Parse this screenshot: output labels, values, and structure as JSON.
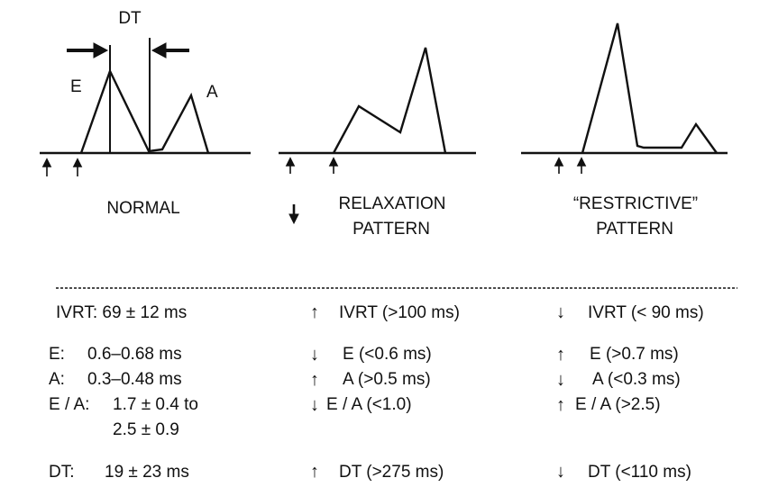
{
  "diagram": {
    "labels": {
      "dt": "DT",
      "e": "E",
      "a": "A"
    },
    "panels": [
      {
        "title_lines": [
          "NORMAL"
        ]
      },
      {
        "title_lines": [
          "RELAXATION",
          "PATTERN"
        ],
        "marker": "↓"
      },
      {
        "title_lines": [
          "“RESTRICTIVE”",
          "PATTERN"
        ]
      }
    ]
  },
  "table": {
    "normal": {
      "ivrt": "IVRT: 69 ± 12 ms",
      "e_label": "E:",
      "e_value": "0.6–0.68 ms",
      "a_label": "A:",
      "a_value": "0.3–0.48 ms",
      "ea_label": "E / A:",
      "ea_value_1": "1.7 ± 0.4 to",
      "ea_value_2": "2.5 ± 0.9",
      "dt_label": "DT:",
      "dt_value": "19 ± 23 ms"
    },
    "relaxation": {
      "ivrt_arrow": "↑",
      "ivrt": "IVRT (>100 ms)",
      "e_arrow": "↓",
      "e": "E (<0.6 ms)",
      "a_arrow": "↑",
      "a": "A (>0.5 ms)",
      "ea_arrow": "↓",
      "ea": "E / A (<1.0)",
      "dt_arrow": "↑",
      "dt": "DT (>275 ms)"
    },
    "restrictive": {
      "ivrt_arrow": "↓",
      "ivrt": "IVRT (< 90 ms)",
      "e_arrow": "↑",
      "e": "E (>0.7 ms)",
      "a_arrow": "↓",
      "a": "A (<0.3 ms)",
      "ea_arrow": "↑",
      "ea": "E / A (>2.5)",
      "dt_arrow": "↓",
      "dt": "DT (<110 ms)"
    }
  }
}
